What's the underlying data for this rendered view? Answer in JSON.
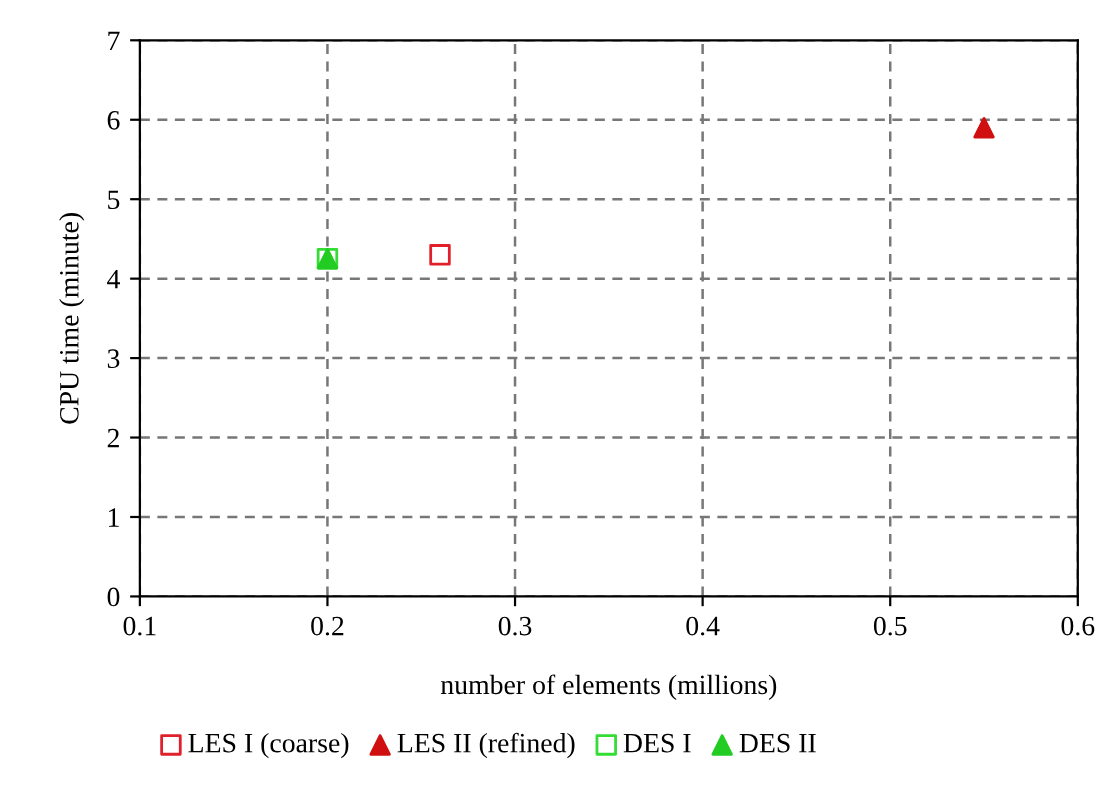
{
  "chart_data": {
    "type": "scatter",
    "xlabel": "number of elements (millions)",
    "ylabel": "CPU time (minute)",
    "xlim": [
      0.1,
      0.6
    ],
    "xticks": [
      0.1,
      0.2,
      0.3,
      0.4,
      0.5,
      0.6
    ],
    "ylim": [
      0,
      7
    ],
    "yticks": [
      0,
      1,
      2,
      3,
      4,
      5,
      6,
      7
    ],
    "grid": true,
    "legend": "bottom",
    "series": [
      {
        "name": "LES I (coarse)",
        "color": "#e0202a",
        "marker": "square",
        "x": [
          0.26
        ],
        "values": [
          4.3
        ]
      },
      {
        "name": "LES II (refined)",
        "color": "#d01010",
        "marker": "triangle",
        "x": [
          0.55
        ],
        "values": [
          5.9
        ]
      },
      {
        "name": "DES I",
        "color": "#33dd33",
        "marker": "square",
        "x": [
          0.2
        ],
        "values": [
          4.25
        ]
      },
      {
        "name": "DES II",
        "color": "#22cc22",
        "marker": "triangle",
        "x": [
          0.2
        ],
        "values": [
          4.25
        ]
      }
    ]
  }
}
